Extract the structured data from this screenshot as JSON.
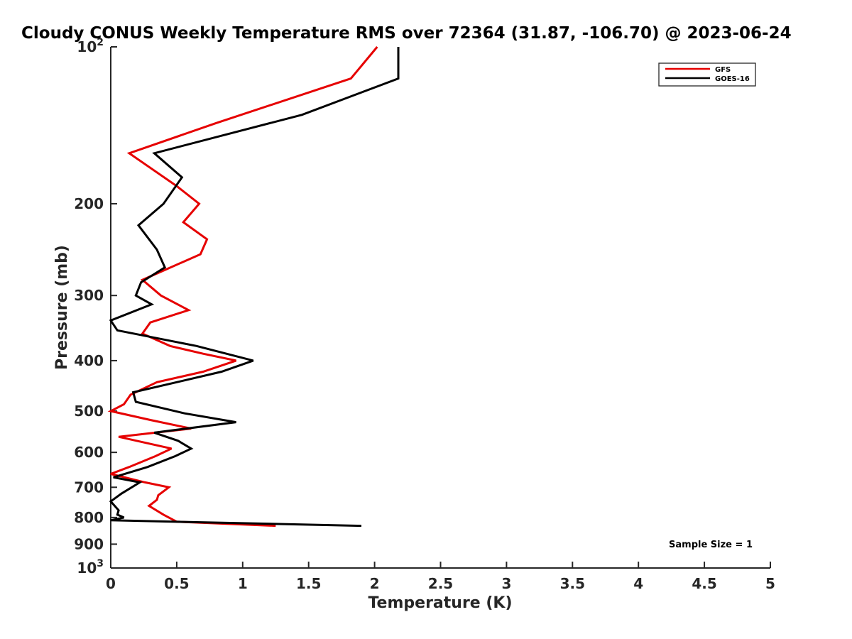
{
  "chart_data": {
    "type": "line",
    "title": "Cloudy CONUS Weekly Temperature RMS over 72364 (31.87, -106.70) @ 2023-06-24",
    "xlabel": "Temperature (K)",
    "ylabel": "Pressure (mb)",
    "xlim": [
      0,
      5
    ],
    "ylim": [
      100,
      1000
    ],
    "y_scale": "log",
    "y_reversed": true,
    "grid": false,
    "legend_position": "top-right",
    "x_ticks": [
      {
        "value": 0,
        "label": "0"
      },
      {
        "value": 0.5,
        "label": "0.5"
      },
      {
        "value": 1,
        "label": "1"
      },
      {
        "value": 1.5,
        "label": "1.5"
      },
      {
        "value": 2,
        "label": "2"
      },
      {
        "value": 2.5,
        "label": "2.5"
      },
      {
        "value": 3,
        "label": "3"
      },
      {
        "value": 3.5,
        "label": "3.5"
      },
      {
        "value": 4,
        "label": "4"
      },
      {
        "value": 4.5,
        "label": "4.5"
      },
      {
        "value": 5,
        "label": "5"
      }
    ],
    "y_ticks": [
      {
        "value": 100,
        "label": "10",
        "exponent": "2"
      },
      {
        "value": 200,
        "label": "200"
      },
      {
        "value": 300,
        "label": "300"
      },
      {
        "value": 400,
        "label": "400"
      },
      {
        "value": 500,
        "label": "500"
      },
      {
        "value": 600,
        "label": "600"
      },
      {
        "value": 700,
        "label": "700"
      },
      {
        "value": 800,
        "label": "800"
      },
      {
        "value": 900,
        "label": "900"
      },
      {
        "value": 1000,
        "label": "10",
        "exponent": "3"
      }
    ],
    "series": [
      {
        "name": "GFS",
        "color": "#e60000",
        "points": [
          [
            2.02,
            100
          ],
          [
            1.82,
            115
          ],
          [
            0.8,
            140
          ],
          [
            0.14,
            160
          ],
          [
            0.5,
            185
          ],
          [
            0.67,
            200
          ],
          [
            0.55,
            217
          ],
          [
            0.73,
            234
          ],
          [
            0.68,
            250
          ],
          [
            0.24,
            280
          ],
          [
            0.38,
            300
          ],
          [
            0.59,
            320
          ],
          [
            0.3,
            338
          ],
          [
            0.24,
            355
          ],
          [
            0.45,
            375
          ],
          [
            0.7,
            388
          ],
          [
            0.95,
            400
          ],
          [
            0.7,
            420
          ],
          [
            0.35,
            440
          ],
          [
            0.15,
            465
          ],
          [
            0.1,
            485
          ],
          [
            0.0,
            500
          ],
          [
            0.3,
            520
          ],
          [
            0.61,
            540
          ],
          [
            0.06,
            560
          ],
          [
            0.46,
            590
          ],
          [
            0.34,
            610
          ],
          [
            0.14,
            640
          ],
          [
            0.0,
            660
          ],
          [
            0.26,
            685
          ],
          [
            0.44,
            700
          ],
          [
            0.36,
            725
          ],
          [
            0.35,
            740
          ],
          [
            0.29,
            760
          ],
          [
            0.4,
            790
          ],
          [
            0.5,
            815
          ],
          [
            1.25,
            830
          ]
        ]
      },
      {
        "name": "GOES-16",
        "color": "#000000",
        "points": [
          [
            2.18,
            100
          ],
          [
            2.18,
            115
          ],
          [
            1.45,
            135
          ],
          [
            0.33,
            160
          ],
          [
            0.54,
            178
          ],
          [
            0.4,
            200
          ],
          [
            0.21,
            220
          ],
          [
            0.35,
            245
          ],
          [
            0.41,
            265
          ],
          [
            0.23,
            283
          ],
          [
            0.19,
            300
          ],
          [
            0.31,
            312
          ],
          [
            0.0,
            335
          ],
          [
            0.05,
            350
          ],
          [
            0.65,
            375
          ],
          [
            1.08,
            400
          ],
          [
            0.84,
            420
          ],
          [
            0.5,
            440
          ],
          [
            0.17,
            460
          ],
          [
            0.19,
            480
          ],
          [
            0.56,
            505
          ],
          [
            0.95,
            525
          ],
          [
            0.33,
            550
          ],
          [
            0.51,
            570
          ],
          [
            0.61,
            590
          ],
          [
            0.49,
            610
          ],
          [
            0.28,
            640
          ],
          [
            0.02,
            670
          ],
          [
            0.22,
            685
          ],
          [
            0.08,
            720
          ],
          [
            0.0,
            745
          ],
          [
            0.06,
            775
          ],
          [
            0.05,
            790
          ],
          [
            0.1,
            800
          ],
          [
            0.0,
            810
          ],
          [
            1.9,
            830
          ]
        ]
      }
    ],
    "annotations": [
      {
        "text": "Sample Size = 1",
        "position": "bottom-right"
      }
    ]
  }
}
